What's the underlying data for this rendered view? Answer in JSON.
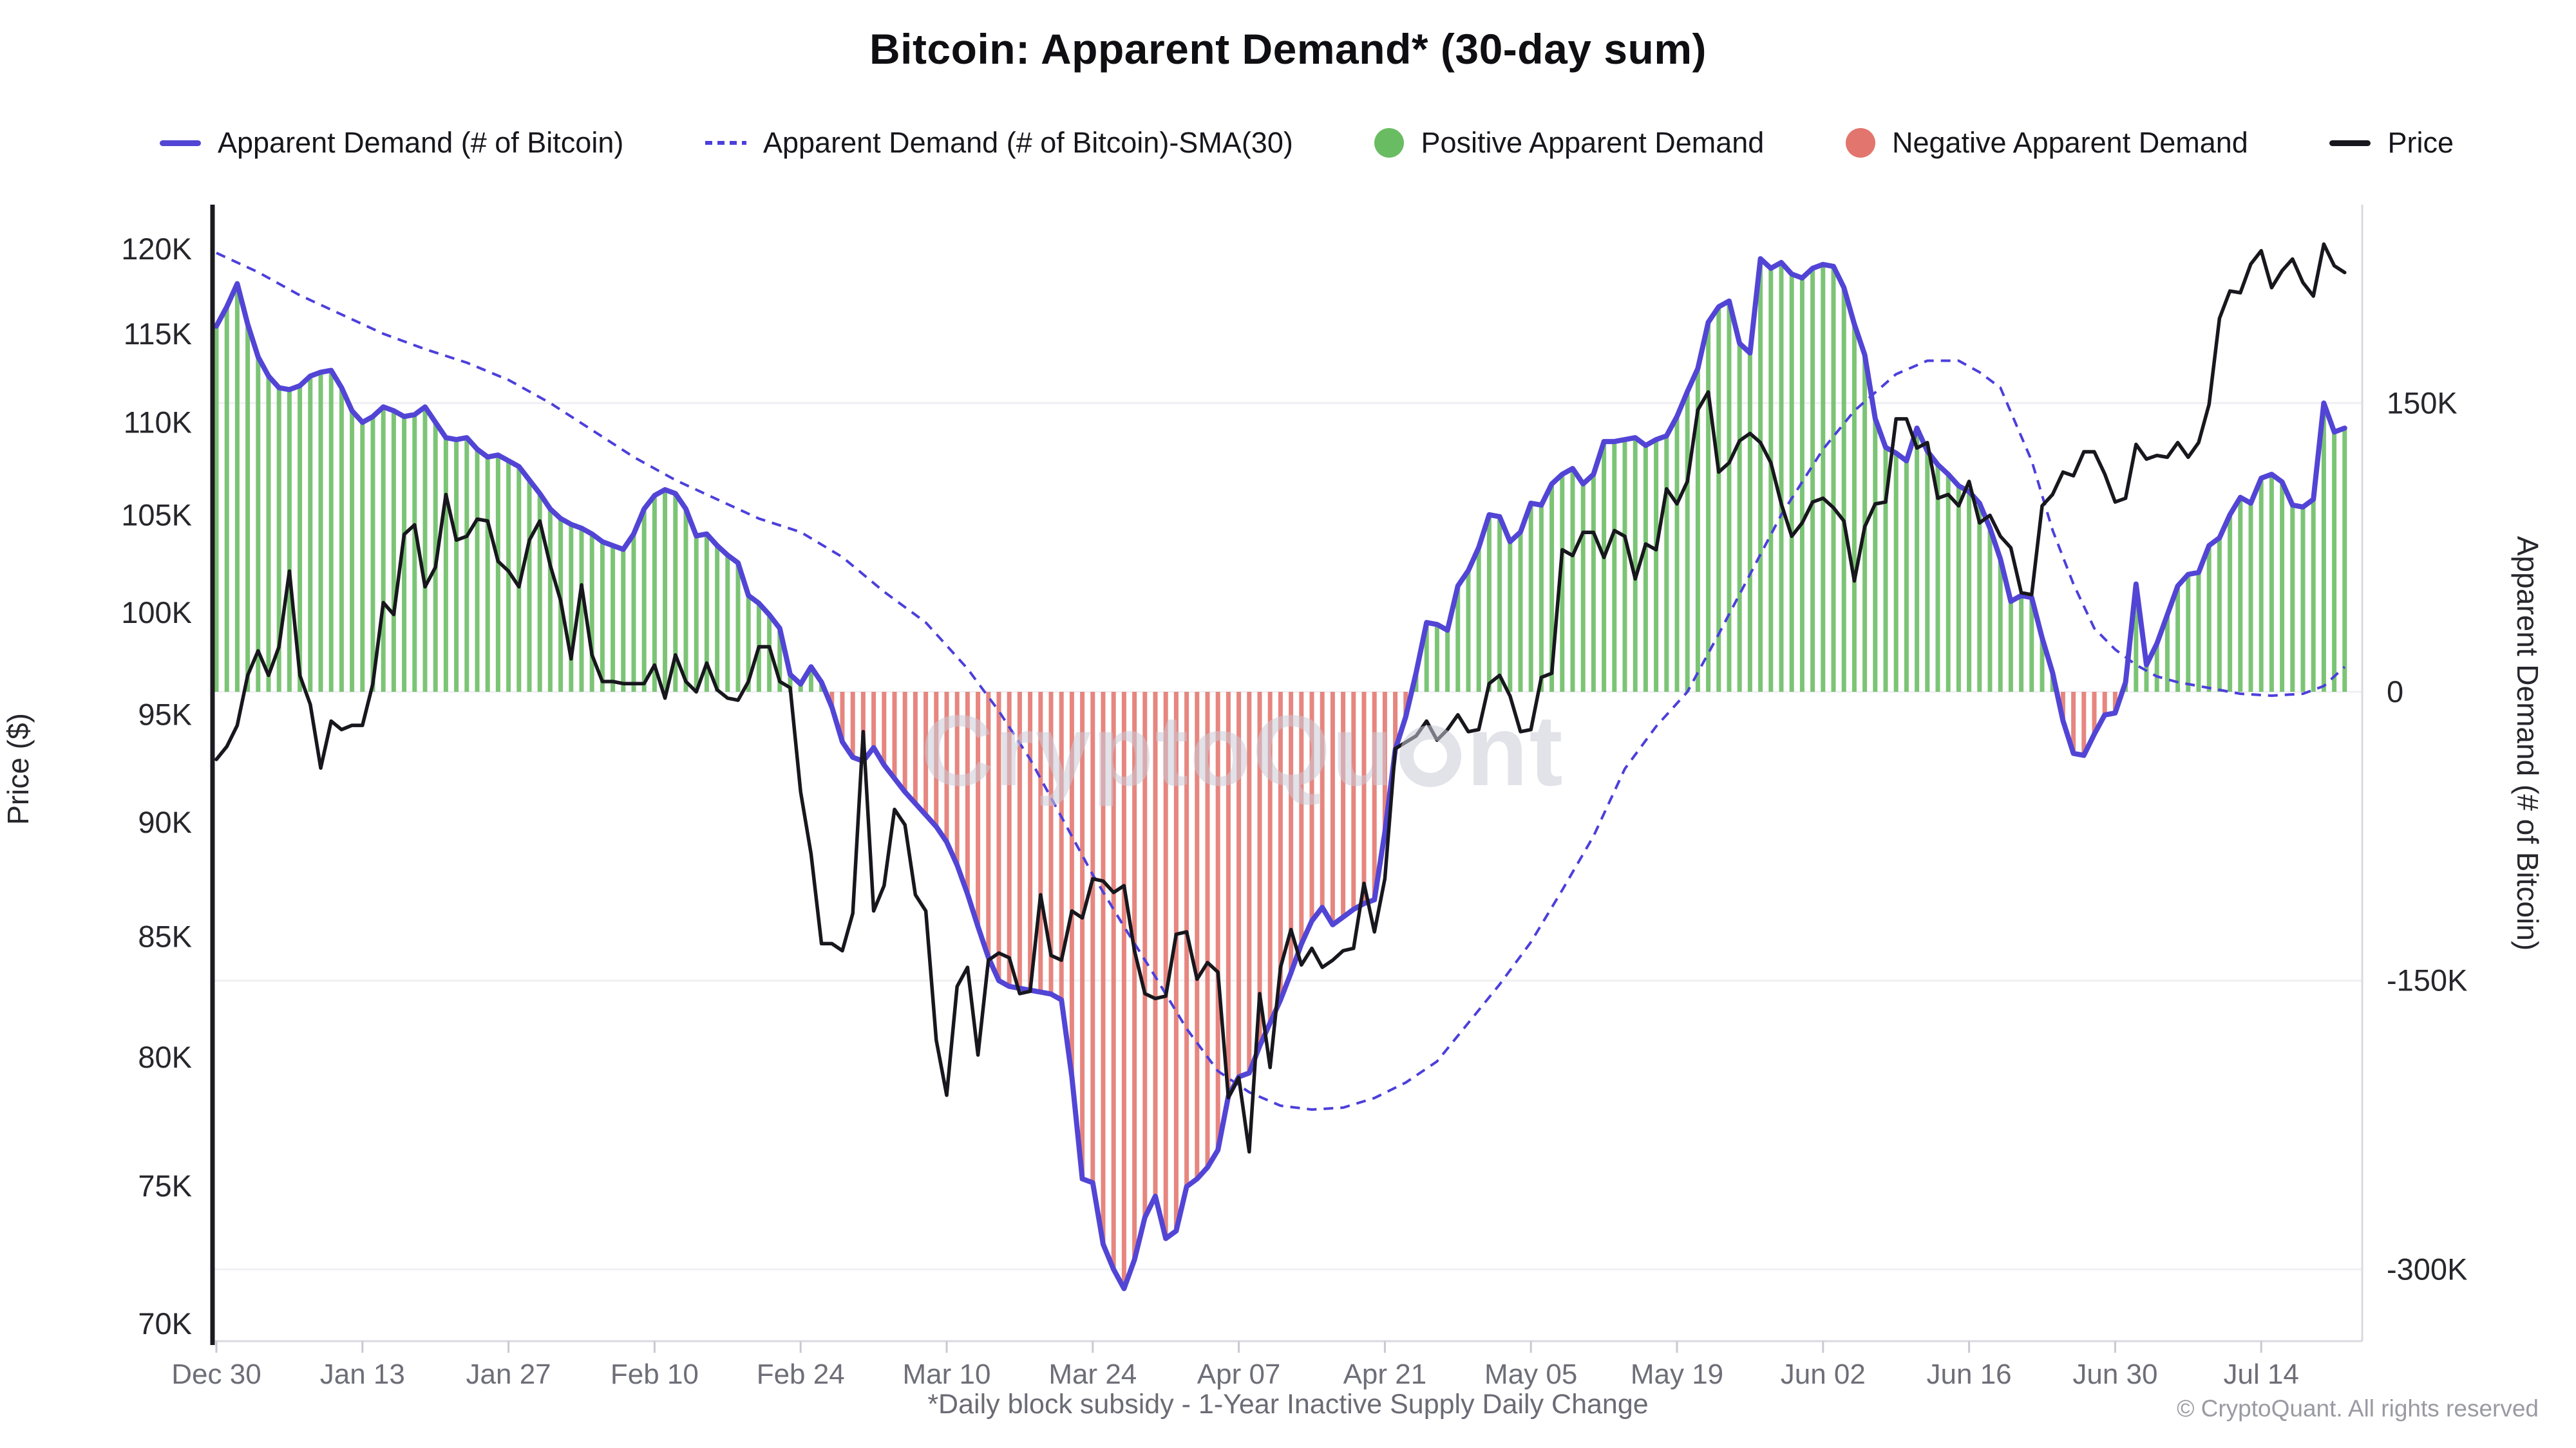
{
  "title": "Bitcoin: Apparent Demand* (30-day sum)",
  "footnote": "*Daily block subsidy - 1-Year Inactive Supply Daily Change",
  "copyright": "© CryptoQuant. All rights reserved",
  "watermark": {
    "pre": "CryptoQu",
    "post": "nt"
  },
  "colors": {
    "demand_line": "#5245d5",
    "sma_line": "#4c3fdb",
    "positive_bar": "#6abc62",
    "negative_bar": "#e2756d",
    "price_line": "#17171d",
    "gridline": "#f0f0f4",
    "axis_light": "#d9d9e0",
    "tick_dark": "#26262c",
    "tick_gray": "#6e6e78"
  },
  "legend": [
    {
      "label": "Apparent Demand (# of Bitcoin)",
      "marker": "line",
      "color": "#5245d5"
    },
    {
      "label": "Apparent Demand (# of Bitcoin)-SMA(30)",
      "marker": "dash",
      "color": "#4c3fdb"
    },
    {
      "label": "Positive Apparent Demand",
      "marker": "dot",
      "color": "#6abc62"
    },
    {
      "label": "Negative Apparent Demand",
      "marker": "dot",
      "color": "#e2756d"
    },
    {
      "label": "Price",
      "marker": "line",
      "color": "#17171d"
    }
  ],
  "chart_data": {
    "type": "mixed",
    "title": "Bitcoin: Apparent Demand* (30-day sum)",
    "grid": "horizontal-faint",
    "legend_position": "top",
    "x_axis": {
      "start_label": "Dec 30",
      "end_label": "Jul 14",
      "tick_labels": [
        "Dec 30",
        "Jan 13",
        "Jan 27",
        "Feb 10",
        "Feb 24",
        "Mar 10",
        "Mar 24",
        "Apr 07",
        "Apr 21",
        "May 05",
        "May 19",
        "Jun 02",
        "Jun 16",
        "Jun 30",
        "Jul 14"
      ],
      "tick_days": [
        0,
        14,
        28,
        42,
        56,
        70,
        84,
        98,
        112,
        126,
        140,
        154,
        168,
        182,
        196
      ]
    },
    "price_axis": {
      "label": "Price ($)",
      "side": "left",
      "scale": "log",
      "tick_labels": [
        "120K",
        "115K",
        "110K",
        "105K",
        "100K",
        "95K",
        "90K",
        "85K",
        "80K",
        "75K",
        "70K"
      ],
      "tick_values": [
        120,
        115,
        110,
        105,
        100,
        95,
        90,
        85,
        80,
        75,
        70
      ],
      "unit": "USD thousands"
    },
    "demand_axis": {
      "label": "Apparent Demand (# of Bitcoin)",
      "side": "right",
      "scale": "linear",
      "tick_labels": [
        "150K",
        "0",
        "-150K",
        "-300K"
      ],
      "tick_values": [
        150,
        0,
        -150,
        -300
      ],
      "unit": "BTC thousands"
    },
    "bars": {
      "positive_name": "Positive Apparent Demand",
      "negative_name": "Negative Apparent Demand",
      "note": "daily bars drawn from 0 to apparent demand value; green when >= 0, red when < 0"
    },
    "series": [
      {
        "name": "Apparent Demand (# of Bitcoin)",
        "type": "line",
        "axis": "demand",
        "unit": "K BTC",
        "daily_from_day0": true,
        "values": [
          190,
          200,
          212,
          191,
          174,
          164,
          158,
          157,
          159,
          164,
          166,
          167,
          158,
          146,
          140,
          143,
          148,
          146,
          143,
          144,
          148,
          140,
          132,
          131,
          132,
          126,
          122,
          123,
          120,
          117,
          110,
          103,
          95,
          90,
          87,
          85,
          82,
          78,
          76,
          74,
          82,
          95,
          102,
          105,
          103,
          95,
          81,
          82,
          76,
          71,
          67,
          50,
          46,
          40,
          33,
          9,
          4,
          13,
          5,
          -8,
          -26,
          -34,
          -36,
          -29,
          -38,
          -45,
          -52,
          -58,
          -64,
          -70,
          -78,
          -90,
          -105,
          -122,
          -138,
          -150,
          -153,
          -154,
          -155,
          -156,
          -157,
          -160,
          -200,
          -253,
          -255,
          -287,
          -300,
          -310,
          -295,
          -273,
          -262,
          -284,
          -280,
          -257,
          -253,
          -247,
          -238,
          -210,
          -200,
          -198,
          -184,
          -172,
          -160,
          -146,
          -131,
          -119,
          -112,
          -121,
          -117,
          -113,
          -110,
          -108,
          -73,
          -30,
          -13,
          10,
          36,
          35,
          32,
          55,
          63,
          75,
          92,
          91,
          78,
          83,
          98,
          97,
          108,
          113,
          116,
          108,
          113,
          130,
          130,
          131,
          132,
          128,
          131,
          133,
          143,
          156,
          168,
          192,
          200,
          203,
          181,
          176,
          225,
          220,
          223,
          217,
          215,
          220,
          222,
          221,
          210,
          191,
          175,
          142,
          127,
          124,
          120,
          137,
          125,
          118,
          113,
          107,
          104,
          98,
          85,
          69,
          47,
          50,
          49,
          28,
          10,
          -15,
          -32,
          -33,
          -22,
          -12,
          -11,
          5,
          56,
          14,
          25,
          40,
          55,
          61,
          62,
          76,
          80,
          92,
          101,
          98,
          111,
          113,
          109,
          97,
          96,
          100,
          150,
          135,
          137
        ]
      },
      {
        "name": "Apparent Demand (# of Bitcoin)-SMA(30)",
        "type": "dashed-line",
        "axis": "demand",
        "unit": "K BTC",
        "anchors_day_value": [
          [
            0,
            228
          ],
          [
            4,
            218
          ],
          [
            8,
            206
          ],
          [
            12,
            196
          ],
          [
            16,
            186
          ],
          [
            20,
            178
          ],
          [
            24,
            171
          ],
          [
            28,
            162
          ],
          [
            32,
            150
          ],
          [
            36,
            136
          ],
          [
            40,
            122
          ],
          [
            44,
            110
          ],
          [
            48,
            100
          ],
          [
            52,
            90
          ],
          [
            56,
            83
          ],
          [
            60,
            70
          ],
          [
            64,
            52
          ],
          [
            68,
            36
          ],
          [
            72,
            12
          ],
          [
            75,
            -10
          ],
          [
            78,
            -35
          ],
          [
            81,
            -65
          ],
          [
            84,
            -95
          ],
          [
            87,
            -122
          ],
          [
            90,
            -148
          ],
          [
            93,
            -175
          ],
          [
            96,
            -197
          ],
          [
            99,
            -208
          ],
          [
            102,
            -215
          ],
          [
            105,
            -217
          ],
          [
            108,
            -216
          ],
          [
            111,
            -211
          ],
          [
            114,
            -203
          ],
          [
            117,
            -192
          ],
          [
            120,
            -172
          ],
          [
            123,
            -152
          ],
          [
            126,
            -130
          ],
          [
            129,
            -103
          ],
          [
            132,
            -75
          ],
          [
            135,
            -40
          ],
          [
            138,
            -18
          ],
          [
            141,
            0
          ],
          [
            144,
            30
          ],
          [
            147,
            61
          ],
          [
            150,
            92
          ],
          [
            154,
            126
          ],
          [
            157,
            146
          ],
          [
            161,
            165
          ],
          [
            164,
            172
          ],
          [
            167,
            172
          ],
          [
            169,
            166
          ],
          [
            171,
            158
          ],
          [
            174,
            120
          ],
          [
            176,
            84
          ],
          [
            178,
            56
          ],
          [
            180,
            33
          ],
          [
            182,
            22
          ],
          [
            184,
            14
          ],
          [
            186,
            8
          ],
          [
            188,
            5
          ],
          [
            192,
            1
          ],
          [
            194,
            -1
          ],
          [
            197,
            -2
          ],
          [
            200,
            -1
          ],
          [
            202,
            3
          ],
          [
            204,
            13
          ]
        ]
      },
      {
        "name": "Price",
        "type": "line",
        "axis": "price",
        "unit": "K USD",
        "daily_from_day0": true,
        "values": [
          92.9,
          93.5,
          94.5,
          96.9,
          98.1,
          96.9,
          98.3,
          102.1,
          96.9,
          95.5,
          92.5,
          94.7,
          94.3,
          94.5,
          94.5,
          96.5,
          100.5,
          99.9,
          104.0,
          104.5,
          101.3,
          102.3,
          106.1,
          103.7,
          103.9,
          104.8,
          104.7,
          102.6,
          102.1,
          101.3,
          103.7,
          104.7,
          102.4,
          100.6,
          97.7,
          101.4,
          97.9,
          96.6,
          96.6,
          96.5,
          96.5,
          96.5,
          97.4,
          95.8,
          97.9,
          96.6,
          96.1,
          97.5,
          96.2,
          95.8,
          95.7,
          96.6,
          98.3,
          98.3,
          96.6,
          96.3,
          91.4,
          88.6,
          84.7,
          84.7,
          84.4,
          86.0,
          94.2,
          86.1,
          87.2,
          90.6,
          89.9,
          86.8,
          86.1,
          80.7,
          78.5,
          82.9,
          83.7,
          80.1,
          84.0,
          84.3,
          84.1,
          82.6,
          82.7,
          86.8,
          84.2,
          84.0,
          86.1,
          85.8,
          87.5,
          87.4,
          86.9,
          87.2,
          84.4,
          82.6,
          82.4,
          82.5,
          85.1,
          85.2,
          83.2,
          83.9,
          83.5,
          78.4,
          79.2,
          76.3,
          82.6,
          79.6,
          83.7,
          85.3,
          83.8,
          84.5,
          83.7,
          84.0,
          84.4,
          84.5,
          87.3,
          85.2,
          87.5,
          93.4,
          93.7,
          94.0,
          94.7,
          93.8,
          94.3,
          95.0,
          94.2,
          94.3,
          96.5,
          96.9,
          95.9,
          94.2,
          94.3,
          96.8,
          97.0,
          103.2,
          102.9,
          104.1,
          104.1,
          102.8,
          104.2,
          103.9,
          101.7,
          103.5,
          103.2,
          106.4,
          105.6,
          106.8,
          110.7,
          111.7,
          107.3,
          107.8,
          109.0,
          109.4,
          108.9,
          107.8,
          105.6,
          103.9,
          104.6,
          105.7,
          105.9,
          105.4,
          104.7,
          101.6,
          104.4,
          105.6,
          105.7,
          110.2,
          110.2,
          108.6,
          108.9,
          105.9,
          106.1,
          105.5,
          106.8,
          104.6,
          105.0,
          103.9,
          103.3,
          101.0,
          100.9,
          105.5,
          106.1,
          107.3,
          107.1,
          108.4,
          108.4,
          107.2,
          105.7,
          105.9,
          108.8,
          108.0,
          108.2,
          108.1,
          108.9,
          108.1,
          108.9,
          111.0,
          115.9,
          117.5,
          117.4,
          119.1,
          119.9,
          117.7,
          118.7,
          119.4,
          118.0,
          117.2,
          120.3,
          119.0,
          118.6
        ]
      }
    ]
  }
}
